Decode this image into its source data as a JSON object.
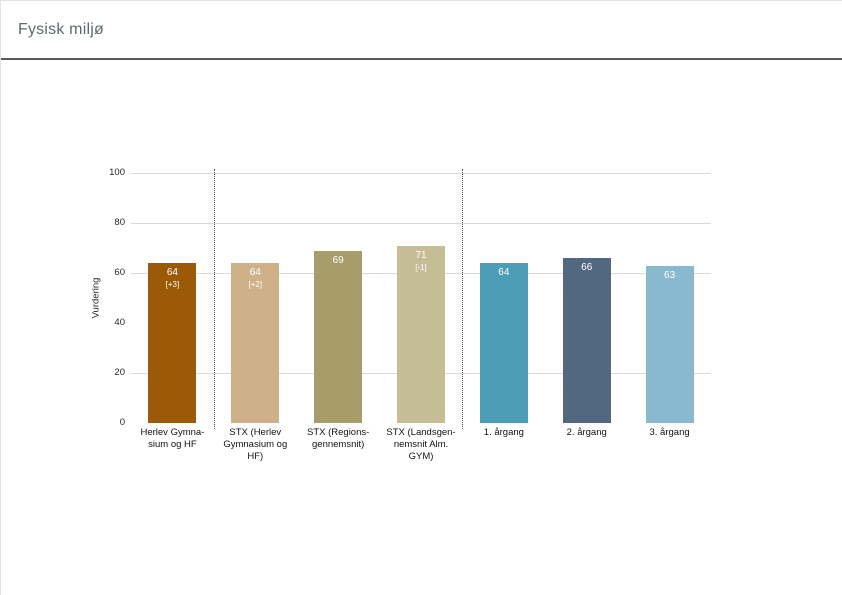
{
  "page": {
    "title": "Fysisk miljø"
  },
  "chart_data": {
    "type": "bar",
    "title": "Fysisk miljø",
    "xlabel": "",
    "ylabel": "Vurdering",
    "ylim": [
      0,
      100
    ],
    "ytick_labels": [
      "100",
      "80",
      "60",
      "40",
      "20",
      "0"
    ],
    "grid": "horizontal gridlines at 20, 60, 80, 100",
    "legend_position": "none",
    "categories": [
      "Herlev Gymnasium og HF",
      "STX (Herlev Gymnasium og HF)",
      "STX (Regionsgennemsnit)",
      "STX (Landsgennemsnit Alm. GYM)",
      "1. årgang",
      "2. årgang",
      "3. årgang"
    ],
    "values": [
      64,
      64,
      69,
      71,
      64,
      66,
      63
    ],
    "deltas": [
      "+3",
      "+2",
      null,
      "-1",
      null,
      null,
      null
    ],
    "group_separators_after_index": [
      0,
      3
    ],
    "bars": [
      {
        "label": "Herlev Gymna-\nsium og HF",
        "value": 64,
        "value_label": "64",
        "delta_label": "[+3]",
        "color": "#9c5a08"
      },
      {
        "label": "STX (Herlev\nGymnasium og\nHF)",
        "value": 64,
        "value_label": "64",
        "delta_label": "[+2]",
        "color": "#cfb189"
      },
      {
        "label": "STX (Regions-\ngennemsnit)",
        "value": 69,
        "value_label": "69",
        "delta_label": "",
        "color": "#a69d6b"
      },
      {
        "label": "STX (Landsgen-\nnemsnit Alm.\nGYM)",
        "value": 71,
        "value_label": "71",
        "delta_label": "[-1]",
        "color": "#c5bd96"
      },
      {
        "label": "1. årgang",
        "value": 64,
        "value_label": "64",
        "delta_label": "",
        "color": "#4c9db6"
      },
      {
        "label": "2. årgang",
        "value": 66,
        "value_label": "66",
        "delta_label": "",
        "color": "#526880"
      },
      {
        "label": "3. årgang",
        "value": 63,
        "value_label": "63",
        "delta_label": "",
        "color": "#89b9cf"
      }
    ]
  }
}
